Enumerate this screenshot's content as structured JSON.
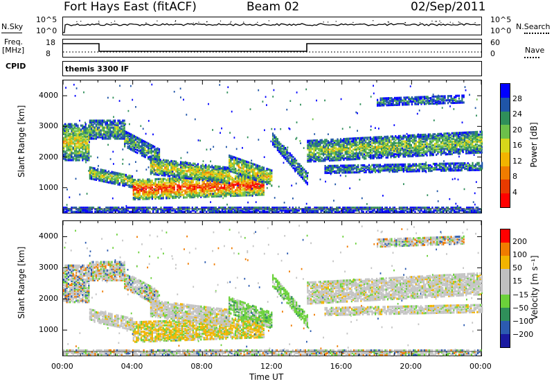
{
  "header": {
    "title": "Fort Hays East (fitACF)",
    "beam": "Beam 02",
    "date": "02/Sep/2011"
  },
  "top_panels": {
    "nsky_label": "N.Sky",
    "nsearch_label": "N.Search",
    "nsky_top": "10^5",
    "nsky_bottom": "10^0",
    "nsearch_top": "10^5",
    "nsearch_bottom": "10^0",
    "freq_label_1": "Freq.",
    "freq_label_2": "[MHz]",
    "freq_top": "18",
    "freq_bottom": "8",
    "nave_top": "60",
    "nave_bottom": "0",
    "nave_label": "Nave",
    "cpid_label": "CPID",
    "cpid_value": "themis 3300 IF"
  },
  "colors": {
    "power_scale": [
      "#0000ff",
      "#1f55a8",
      "#2f8f5a",
      "#6cc04a",
      "#d6d61a",
      "#f2b400",
      "#f07c00",
      "#e83a00",
      "#ff0000"
    ],
    "velocity_scale": [
      "#1a1aa0",
      "#2c5bb0",
      "#2f8f5a",
      "#6bd13a",
      "#c0c0c0",
      "#c0c0c0",
      "#f2b400",
      "#f07c00",
      "#ff0000"
    ]
  },
  "chart_data": [
    {
      "type": "heatmap",
      "title": "",
      "ylabel": "Slant Range [km]",
      "xlabel": "",
      "colorbar_label": "Power [dB]",
      "colorbar_ticks": [
        "28",
        "24",
        "20",
        "16",
        "12",
        "8",
        "4"
      ],
      "ylim": [
        180,
        4500
      ],
      "yticks": [
        "4000",
        "3000",
        "2000",
        "1000"
      ],
      "xlim": [
        0,
        24
      ],
      "xticks_hours": [
        0,
        4,
        8,
        12,
        16,
        20,
        24
      ]
    },
    {
      "type": "heatmap",
      "title": "",
      "ylabel": "Slant Range [km]",
      "xlabel": "Time UT",
      "colorbar_label": "Velocity [m s⁻¹]",
      "colorbar_ticks": [
        "200",
        "100",
        "50",
        "15",
        "−15",
        "−50",
        "−100",
        "−200"
      ],
      "ylim": [
        180,
        4500
      ],
      "yticks": [
        "4000",
        "3000",
        "2000",
        "1000"
      ],
      "xlim": [
        0,
        24
      ],
      "xticks": [
        "00:00",
        "04:00",
        "08:00",
        "12:00",
        "16:00",
        "20:00",
        "00:00"
      ]
    }
  ]
}
